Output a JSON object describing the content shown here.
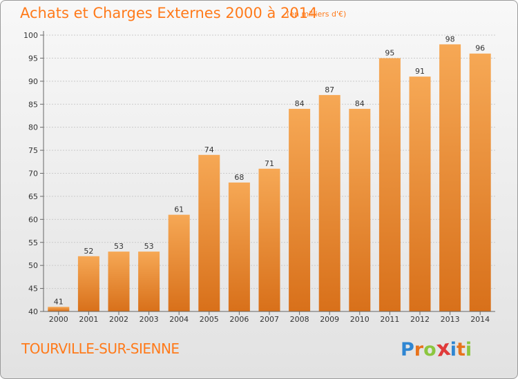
{
  "header": {
    "title": "Achats et Charges Externes 2000 à 2014",
    "subtitle": "(en milliers d'€)"
  },
  "footer": {
    "commune": "TOURVILLE-SUR-SIENNE",
    "logo_letters": [
      "P",
      "r",
      "o",
      "x",
      "i",
      "t",
      "i"
    ]
  },
  "colors": {
    "title": "#ff7a1a",
    "bar_light": "#f5a552",
    "bar_dark": "#d96e14",
    "logo": [
      "#2f86d2",
      "#e8731c",
      "#8cc63f",
      "#e03a3a",
      "#2f86d2",
      "#e8731c",
      "#8cc63f"
    ]
  },
  "chart_data": {
    "type": "bar",
    "title": "Achats et Charges Externes 2000 à 2014",
    "ylabel": "en milliers d'€",
    "xlabel": "",
    "categories": [
      "2000",
      "2001",
      "2002",
      "2003",
      "2004",
      "2005",
      "2006",
      "2007",
      "2008",
      "2009",
      "2010",
      "2011",
      "2012",
      "2013",
      "2014"
    ],
    "values": [
      41,
      52,
      53,
      53,
      61,
      74,
      68,
      71,
      84,
      87,
      84,
      95,
      91,
      98,
      96
    ],
    "ylim": [
      40,
      100
    ],
    "yticks": [
      40,
      45,
      50,
      55,
      60,
      65,
      70,
      75,
      80,
      85,
      90,
      95,
      100
    ],
    "grid": true
  }
}
